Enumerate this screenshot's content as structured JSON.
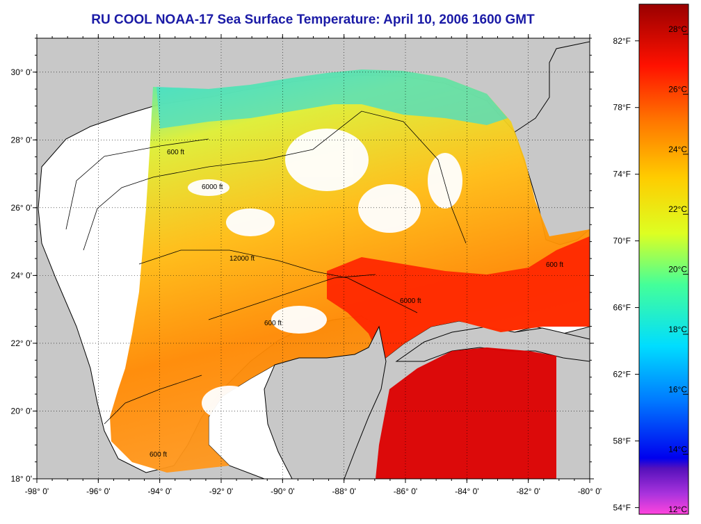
{
  "title": "RU COOL  NOAA-17  Sea Surface Temperature:  April 10, 2006 1600 GMT",
  "map": {
    "lon_range": [
      -98,
      -80
    ],
    "lat_range": [
      18,
      31
    ],
    "longitude_ticks": [
      "-98° 0'",
      "-96° 0'",
      "-94° 0'",
      "-92° 0'",
      "-90° 0'",
      "-88° 0'",
      "-86° 0'",
      "-84° 0'",
      "-82° 0'",
      "-80° 0'"
    ],
    "latitude_ticks": [
      "30° 0'",
      "28° 0'",
      "26° 0'",
      "24° 0'",
      "22° 0'",
      "20° 0'",
      "18° 0'"
    ],
    "fahrenheit_ticks": [
      "82°F",
      "78°F",
      "74°F",
      "70°F",
      "66°F",
      "62°F",
      "58°F",
      "54°F"
    ],
    "contour_labels": [
      "600 ft",
      "6000 ft",
      "12000 ft"
    ],
    "grid": "dotted"
  },
  "colorbar": {
    "labels_celsius": [
      "28°C",
      "26°C",
      "24°C",
      "22°C",
      "20°C",
      "18°C",
      "16°C",
      "14°C",
      "12°C"
    ],
    "stops": [
      "#ff44dd",
      "#8833cc",
      "#0000ee",
      "#0077ff",
      "#00ddff",
      "#44ff99",
      "#ddff22",
      "#ffcc00",
      "#ff7700",
      "#ff1100",
      "#990000"
    ],
    "range_celsius": [
      12,
      29
    ]
  },
  "colors": {
    "land": "#c8c8c8",
    "ocean_nodata": "#ffffff",
    "coast": "#000000",
    "title": "#1a1aa6"
  }
}
